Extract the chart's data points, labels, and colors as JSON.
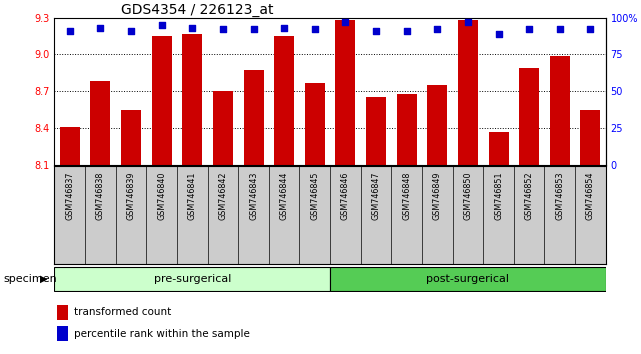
{
  "title": "GDS4354 / 226123_at",
  "categories": [
    "GSM746837",
    "GSM746838",
    "GSM746839",
    "GSM746840",
    "GSM746841",
    "GSM746842",
    "GSM746843",
    "GSM746844",
    "GSM746845",
    "GSM746846",
    "GSM746847",
    "GSM746848",
    "GSM746849",
    "GSM746850",
    "GSM746851",
    "GSM746852",
    "GSM746853",
    "GSM746854"
  ],
  "bar_values": [
    8.41,
    8.78,
    8.55,
    9.15,
    9.17,
    8.7,
    8.87,
    9.15,
    8.77,
    9.28,
    8.65,
    8.68,
    8.75,
    9.28,
    8.37,
    8.89,
    8.99,
    8.55
  ],
  "percentile_values": [
    91,
    93,
    91,
    95,
    93,
    92,
    92,
    93,
    92,
    97,
    91,
    91,
    92,
    97,
    89,
    92,
    92,
    92
  ],
  "bar_color": "#cc0000",
  "dot_color": "#0000cc",
  "ylim_left": [
    8.1,
    9.3
  ],
  "ylim_right": [
    0,
    100
  ],
  "yticks_left": [
    8.1,
    8.4,
    8.7,
    9.0,
    9.3
  ],
  "yticks_right": [
    0,
    25,
    50,
    75,
    100
  ],
  "ytick_labels_right": [
    "0",
    "25",
    "50",
    "75",
    "100%"
  ],
  "groups": [
    {
      "label": "pre-surgerical",
      "start": 0,
      "end": 9,
      "color": "#ccffcc"
    },
    {
      "label": "post-surgerical",
      "start": 9,
      "end": 18,
      "color": "#55cc55"
    }
  ],
  "group_label_left": "specimen",
  "legend_items": [
    {
      "label": "transformed count",
      "color": "#cc0000"
    },
    {
      "label": "percentile rank within the sample",
      "color": "#0000cc"
    }
  ],
  "background_color": "#ffffff",
  "xlabel_bg_color": "#cccccc",
  "bar_baseline": 8.1,
  "dot_size": 25,
  "bar_width": 0.65,
  "title_fontsize": 10,
  "axis_label_fontsize": 7.5,
  "tick_label_fontsize": 7,
  "group_label_fontsize": 8,
  "legend_fontsize": 7.5
}
